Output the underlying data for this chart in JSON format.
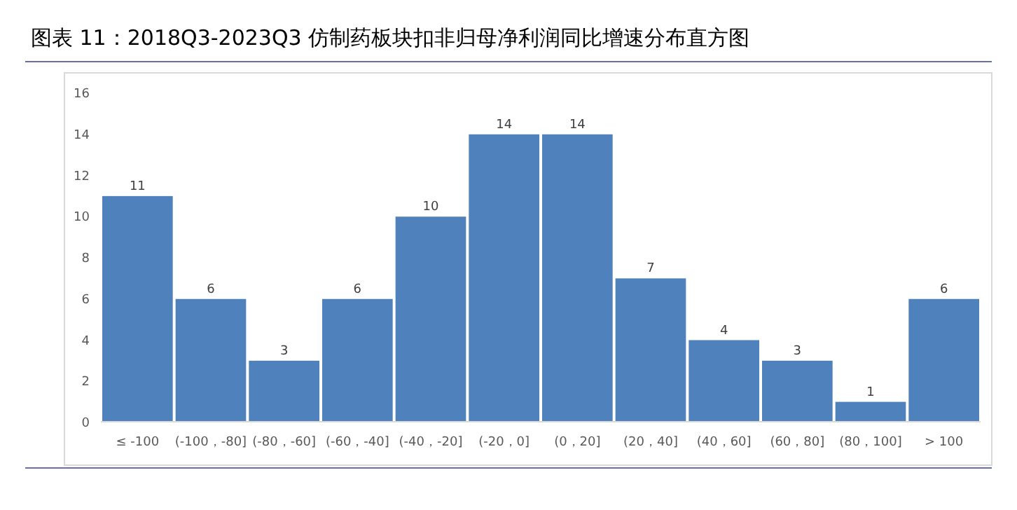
{
  "chart_data": {
    "type": "bar",
    "title": "图表 11：2018Q3-2023Q3 仿制药板块扣非归母净利润同比增速分布直方图",
    "categories": [
      "≤ -100",
      "(-100，-80]",
      "(-80，-60]",
      "(-60，-40]",
      "(-40，-20]",
      "(-20，0]",
      "(0，20]",
      "(20，40]",
      "(40，60]",
      "(60，80]",
      "(80，100]",
      "> 100"
    ],
    "values": [
      11,
      6,
      3,
      6,
      10,
      14,
      14,
      7,
      4,
      3,
      1,
      6
    ],
    "color": "#4f81bd",
    "ylim": [
      0,
      16
    ],
    "yticks": [
      0,
      2,
      4,
      6,
      8,
      10,
      12,
      14,
      16
    ],
    "data_labels": true
  }
}
